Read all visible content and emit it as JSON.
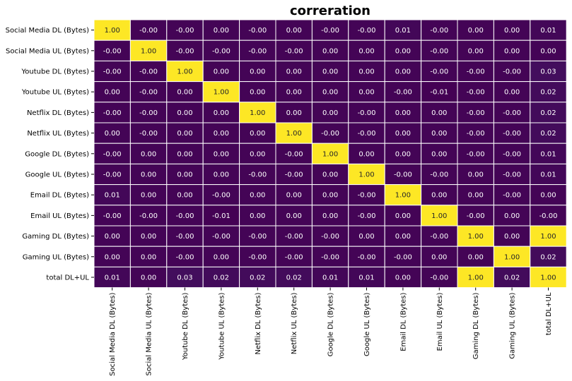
{
  "chart_data": {
    "type": "heatmap",
    "title": "correration",
    "x_labels": [
      "Social Media DL (Bytes)",
      "Social Media UL (Bytes)",
      "Youtube DL (Bytes)",
      "Youtube UL (Bytes)",
      "Netflix DL (Bytes)",
      "Netflix UL (Bytes)",
      "Google DL (Bytes)",
      "Google UL (Bytes)",
      "Email DL (Bytes)",
      "Email UL (Bytes)",
      "Gaming DL (Bytes)",
      "Gaming UL (Bytes)",
      "total DL+UL"
    ],
    "y_labels": [
      "Social Media DL (Bytes)",
      "Social Media UL (Bytes)",
      "Youtube DL (Bytes)",
      "Youtube UL (Bytes)",
      "Netflix DL (Bytes)",
      "Netflix UL (Bytes)",
      "Google DL (Bytes)",
      "Google UL (Bytes)",
      "Email DL (Bytes)",
      "Email UL (Bytes)",
      "Gaming DL (Bytes)",
      "Gaming UL (Bytes)",
      "total DL+UL"
    ],
    "values": [
      [
        "1.00",
        "-0.00",
        "-0.00",
        "0.00",
        "-0.00",
        "0.00",
        "-0.00",
        "-0.00",
        "0.01",
        "-0.00",
        "0.00",
        "0.00",
        "0.01"
      ],
      [
        "-0.00",
        "1.00",
        "-0.00",
        "-0.00",
        "-0.00",
        "-0.00",
        "0.00",
        "0.00",
        "0.00",
        "-0.00",
        "0.00",
        "0.00",
        "0.00"
      ],
      [
        "-0.00",
        "-0.00",
        "1.00",
        "0.00",
        "0.00",
        "0.00",
        "0.00",
        "0.00",
        "0.00",
        "-0.00",
        "-0.00",
        "-0.00",
        "0.03"
      ],
      [
        "0.00",
        "-0.00",
        "0.00",
        "1.00",
        "0.00",
        "0.00",
        "0.00",
        "0.00",
        "-0.00",
        "-0.01",
        "-0.00",
        "0.00",
        "0.02"
      ],
      [
        "-0.00",
        "-0.00",
        "0.00",
        "0.00",
        "1.00",
        "0.00",
        "0.00",
        "-0.00",
        "0.00",
        "0.00",
        "-0.00",
        "-0.00",
        "0.02"
      ],
      [
        "0.00",
        "-0.00",
        "0.00",
        "0.00",
        "0.00",
        "1.00",
        "-0.00",
        "-0.00",
        "0.00",
        "0.00",
        "-0.00",
        "-0.00",
        "0.02"
      ],
      [
        "-0.00",
        "0.00",
        "0.00",
        "0.00",
        "0.00",
        "-0.00",
        "1.00",
        "0.00",
        "0.00",
        "0.00",
        "-0.00",
        "-0.00",
        "0.01"
      ],
      [
        "-0.00",
        "0.00",
        "0.00",
        "0.00",
        "-0.00",
        "-0.00",
        "0.00",
        "1.00",
        "-0.00",
        "-0.00",
        "0.00",
        "-0.00",
        "0.01"
      ],
      [
        "0.01",
        "0.00",
        "0.00",
        "-0.00",
        "0.00",
        "0.00",
        "0.00",
        "-0.00",
        "1.00",
        "0.00",
        "0.00",
        "-0.00",
        "0.00"
      ],
      [
        "-0.00",
        "-0.00",
        "-0.00",
        "-0.01",
        "0.00",
        "0.00",
        "0.00",
        "-0.00",
        "0.00",
        "1.00",
        "-0.00",
        "0.00",
        "-0.00"
      ],
      [
        "0.00",
        "0.00",
        "-0.00",
        "-0.00",
        "-0.00",
        "-0.00",
        "-0.00",
        "0.00",
        "0.00",
        "-0.00",
        "1.00",
        "0.00",
        "1.00"
      ],
      [
        "0.00",
        "0.00",
        "-0.00",
        "0.00",
        "-0.00",
        "-0.00",
        "-0.00",
        "-0.00",
        "-0.00",
        "0.00",
        "0.00",
        "1.00",
        "0.02"
      ],
      [
        "0.01",
        "0.00",
        "0.03",
        "0.02",
        "0.02",
        "0.02",
        "0.01",
        "0.01",
        "0.00",
        "-0.00",
        "1.00",
        "0.02",
        "1.00"
      ]
    ],
    "colorscale": "viridis",
    "colorbar": false,
    "grid": false
  },
  "colors": {
    "low": "#440154",
    "high": "#fde725",
    "cell_border": "#ffffff",
    "text_on_dark": "#ffffff",
    "text_on_light": "#262626"
  }
}
